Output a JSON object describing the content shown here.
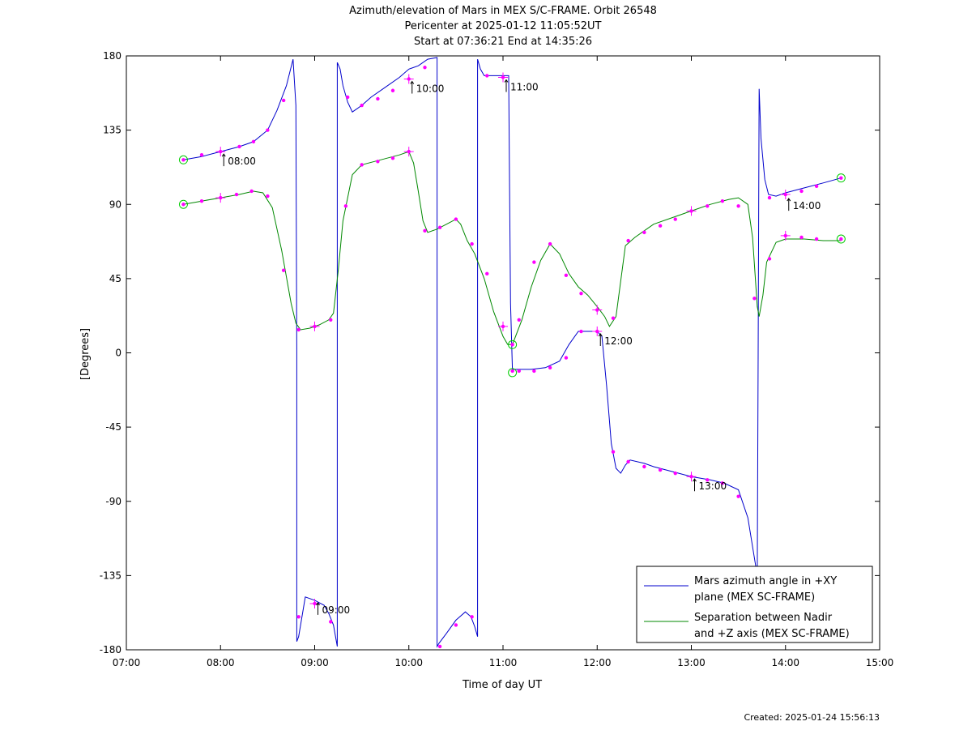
{
  "chart_data": {
    "type": "line",
    "title": [
      "Azimuth/elevation of Mars in MEX S/C-FRAME.  Orbit 26548",
      "Pericenter at 2025-01-12 11:05:52UT",
      "Start at 07:36:21 End at 14:35:26"
    ],
    "xlabel": "Time of day UT",
    "ylabel": "[Degrees]",
    "xlim": [
      7,
      15
    ],
    "ylim": [
      -180,
      180
    ],
    "x_ticks": [
      7,
      8,
      9,
      10,
      11,
      12,
      13,
      14,
      15
    ],
    "x_tick_labels": [
      "07:00",
      "08:00",
      "09:00",
      "10:00",
      "11:00",
      "12:00",
      "13:00",
      "14:00",
      "15:00"
    ],
    "y_ticks": [
      180,
      135,
      90,
      45,
      0,
      -45,
      -90,
      -135,
      -180
    ],
    "y_tick_labels": [
      "180",
      "135",
      "90",
      "45",
      "0",
      "-45",
      "-90",
      "-135",
      "-180"
    ],
    "grid": false,
    "legend_position": "bottom-right",
    "series": [
      {
        "name": "Mars azimuth angle in +XY\nplane (MEX SC-FRAME)",
        "color": "#0000cc",
        "x": [
          7.606,
          7.8,
          8.0,
          8.2,
          8.35,
          8.5,
          8.6,
          8.7,
          8.77,
          8.8,
          8.81,
          8.81,
          8.83,
          8.9,
          9.0,
          9.1,
          9.15,
          9.2,
          9.24,
          9.24,
          9.27,
          9.3,
          9.35,
          9.4,
          9.5,
          9.6,
          9.75,
          9.9,
          10.0,
          10.1,
          10.2,
          10.3,
          10.3,
          10.32,
          10.4,
          10.5,
          10.6,
          10.66,
          10.7,
          10.73,
          10.73,
          10.76,
          10.8,
          10.9,
          11.0,
          11.06,
          11.07,
          11.08,
          11.1,
          11.1,
          11.2,
          11.3,
          11.45,
          11.6,
          11.7,
          11.8,
          11.9,
          12.0,
          12.05,
          12.1,
          12.15,
          12.2,
          12.25,
          12.3,
          12.35,
          12.5,
          12.6,
          12.8,
          13.0,
          13.2,
          13.35,
          13.5,
          13.6,
          13.7,
          13.71,
          13.72,
          13.74,
          13.78,
          13.82,
          13.9,
          14.0,
          14.2,
          14.4,
          14.59
        ],
        "y": [
          117,
          119,
          122,
          125,
          128,
          135,
          147,
          162,
          178,
          150,
          0,
          -175,
          -172,
          -148,
          -150,
          -153,
          -158,
          -165,
          -178,
          176,
          172,
          162,
          152,
          146,
          150,
          155,
          161,
          167,
          172,
          174,
          178,
          179,
          -178,
          -176,
          -170,
          -162,
          -157,
          -160,
          -166,
          -172,
          178,
          172,
          168,
          168,
          168,
          168,
          100,
          30,
          -10,
          -10,
          -10,
          -10,
          -9,
          -5,
          5,
          13,
          13,
          13,
          10,
          -20,
          -55,
          -70,
          -73,
          -68,
          -65,
          -67,
          -69,
          -72,
          -75,
          -77,
          -79,
          -83,
          -100,
          -135,
          0,
          160,
          130,
          105,
          96,
          95,
          97,
          100,
          103,
          106
        ],
        "markers": [
          [
            7.606,
            117
          ],
          [
            7.8,
            120
          ],
          [
            8.0,
            122
          ],
          [
            8.2,
            125
          ],
          [
            8.35,
            128
          ],
          [
            8.5,
            135
          ],
          [
            8.67,
            153
          ],
          [
            8.83,
            -160
          ],
          [
            9.0,
            -152
          ],
          [
            9.17,
            -163
          ],
          [
            9.35,
            155
          ],
          [
            9.5,
            150
          ],
          [
            9.67,
            154
          ],
          [
            9.83,
            159
          ],
          [
            10.0,
            166
          ],
          [
            10.17,
            173
          ],
          [
            10.33,
            -178
          ],
          [
            10.5,
            -165
          ],
          [
            10.67,
            -160
          ],
          [
            10.83,
            168
          ],
          [
            11.0,
            167
          ],
          [
            11.1,
            -11
          ],
          [
            11.17,
            -11
          ],
          [
            11.33,
            -11
          ],
          [
            11.5,
            -9
          ],
          [
            11.67,
            -3
          ],
          [
            11.83,
            13
          ],
          [
            12.0,
            13
          ],
          [
            12.17,
            -60
          ],
          [
            12.33,
            -66
          ],
          [
            12.5,
            -69
          ],
          [
            12.67,
            -71
          ],
          [
            12.83,
            -73
          ],
          [
            13.0,
            -75
          ],
          [
            13.17,
            -77
          ],
          [
            13.33,
            -79
          ],
          [
            13.5,
            -87
          ],
          [
            13.83,
            94
          ],
          [
            14.0,
            96
          ],
          [
            14.17,
            98
          ],
          [
            14.33,
            101
          ],
          [
            14.59,
            106
          ]
        ]
      },
      {
        "name": "Separation between Nadir\nand +Z axis (MEX SC-FRAME)",
        "color": "#008800",
        "x": [
          7.606,
          7.8,
          8.0,
          8.2,
          8.35,
          8.45,
          8.55,
          8.65,
          8.75,
          8.8,
          8.85,
          8.95,
          9.05,
          9.15,
          9.2,
          9.25,
          9.3,
          9.4,
          9.5,
          9.7,
          9.9,
          10.0,
          10.05,
          10.1,
          10.15,
          10.2,
          10.3,
          10.4,
          10.5,
          10.55,
          10.62,
          10.7,
          10.8,
          10.9,
          11.0,
          11.05,
          11.1,
          11.2,
          11.3,
          11.4,
          11.5,
          11.6,
          11.7,
          11.8,
          11.9,
          12.0,
          12.08,
          12.13,
          12.2,
          12.3,
          12.4,
          12.5,
          12.6,
          12.8,
          13.0,
          13.2,
          13.4,
          13.5,
          13.6,
          13.65,
          13.7,
          13.72,
          13.76,
          13.8,
          13.9,
          14.0,
          14.2,
          14.4,
          14.59
        ],
        "y": [
          90,
          92,
          94,
          96,
          98,
          97,
          88,
          62,
          30,
          18,
          14,
          15,
          17,
          20,
          24,
          50,
          80,
          108,
          114,
          117,
          120,
          122,
          115,
          98,
          80,
          73,
          75,
          78,
          81,
          78,
          68,
          60,
          45,
          25,
          10,
          5,
          5,
          20,
          40,
          56,
          66,
          60,
          48,
          40,
          35,
          28,
          22,
          16,
          22,
          65,
          70,
          74,
          78,
          82,
          86,
          90,
          93,
          94,
          90,
          70,
          28,
          22,
          35,
          55,
          67,
          69,
          69,
          68,
          68
        ],
        "markers": [
          [
            7.606,
            90
          ],
          [
            7.8,
            92
          ],
          [
            8.0,
            94
          ],
          [
            8.17,
            96
          ],
          [
            8.33,
            98
          ],
          [
            8.5,
            95
          ],
          [
            8.67,
            50
          ],
          [
            8.83,
            14
          ],
          [
            9.0,
            16
          ],
          [
            9.17,
            20
          ],
          [
            9.33,
            89
          ],
          [
            9.5,
            114
          ],
          [
            9.67,
            116
          ],
          [
            9.83,
            118
          ],
          [
            10.0,
            122
          ],
          [
            10.17,
            74
          ],
          [
            10.33,
            76
          ],
          [
            10.5,
            81
          ],
          [
            10.67,
            66
          ],
          [
            10.83,
            48
          ],
          [
            11.0,
            16
          ],
          [
            11.1,
            5
          ],
          [
            11.17,
            20
          ],
          [
            11.33,
            55
          ],
          [
            11.5,
            66
          ],
          [
            11.67,
            47
          ],
          [
            11.83,
            36
          ],
          [
            12.0,
            26
          ],
          [
            12.17,
            21
          ],
          [
            12.33,
            68
          ],
          [
            12.5,
            73
          ],
          [
            12.67,
            77
          ],
          [
            12.83,
            81
          ],
          [
            13.0,
            86
          ],
          [
            13.17,
            89
          ],
          [
            13.33,
            92
          ],
          [
            13.5,
            89
          ],
          [
            13.67,
            33
          ],
          [
            13.83,
            57
          ],
          [
            14.0,
            71
          ],
          [
            14.17,
            70
          ],
          [
            14.33,
            69
          ],
          [
            14.59,
            69
          ]
        ]
      }
    ],
    "start_end_circles": [
      [
        7.606,
        117
      ],
      [
        14.59,
        106
      ],
      [
        7.606,
        90
      ],
      [
        14.59,
        69
      ],
      [
        11.1,
        -12
      ],
      [
        11.1,
        5
      ]
    ],
    "hour_crosses": [
      [
        8.0,
        122
      ],
      [
        8.0,
        94
      ],
      [
        9.0,
        16
      ],
      [
        9.0,
        -152
      ],
      [
        10.0,
        166
      ],
      [
        10.0,
        122
      ],
      [
        11.0,
        167
      ],
      [
        11.0,
        16
      ],
      [
        12.0,
        13
      ],
      [
        12.0,
        26
      ],
      [
        13.0,
        -75
      ],
      [
        13.0,
        86
      ],
      [
        14.0,
        96
      ],
      [
        14.0,
        71
      ]
    ],
    "annotations": [
      {
        "label": "08:00",
        "x": 8.0,
        "y": 122
      },
      {
        "label": "09:00",
        "x": 9.0,
        "y": -150
      },
      {
        "label": "10:00",
        "x": 10.0,
        "y": 166
      },
      {
        "label": "11:00",
        "x": 11.0,
        "y": 167
      },
      {
        "label": "12:00",
        "x": 12.0,
        "y": 13
      },
      {
        "label": "13:00",
        "x": 13.0,
        "y": -75
      },
      {
        "label": "14:00",
        "x": 14.0,
        "y": 95
      }
    ]
  },
  "created_label": "Created: 2025-01-24 15:56:13"
}
